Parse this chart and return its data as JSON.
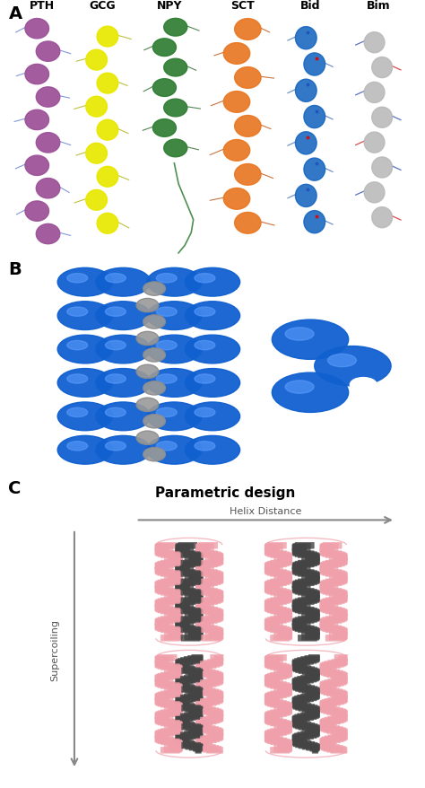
{
  "panel_A_label": "A",
  "panel_B_label": "B",
  "panel_C_label": "C",
  "peptide_labels": [
    "PTH",
    "GCG",
    "NPY",
    "SCT",
    "Bid",
    "Bim"
  ],
  "peptide_colors": [
    "#9B4F96",
    "#E8E800",
    "#2E7D32",
    "#E87722",
    "#1565C0",
    "#B8B8B8"
  ],
  "panel_C_title": "Parametric design",
  "helix_distance_label": "Helix Distance",
  "supercoiling_label": "Supercoiling",
  "blue_sphere_color": "#1060D0",
  "blue_highlight_color": "#60A0FF",
  "gray_helix_color": "#999999",
  "gray_helix_dark": "#666666",
  "pink_helix_color": "#F0A0AA",
  "dark_helix_color": "#444444",
  "arrow_color": "#888888",
  "bg_color": "#FFFFFF",
  "fig_width": 4.74,
  "fig_height": 8.79,
  "dpi": 100
}
